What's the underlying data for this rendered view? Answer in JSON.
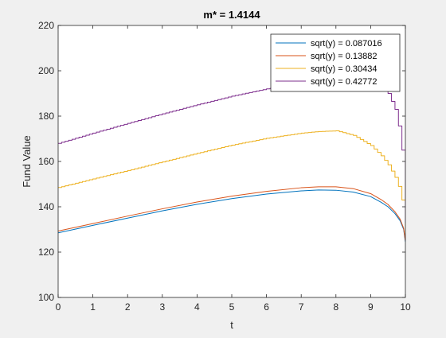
{
  "chart_data": {
    "type": "line",
    "title": "m* = 1.4144",
    "xlabel": "t",
    "ylabel": "Fund Value",
    "xlim": [
      0,
      10
    ],
    "ylim": [
      100,
      220
    ],
    "xticks": [
      0,
      1,
      2,
      3,
      4,
      5,
      6,
      7,
      8,
      9,
      10
    ],
    "yticks": [
      100,
      120,
      140,
      160,
      180,
      200,
      220
    ],
    "grid": false,
    "legend_position": "top-right",
    "series": [
      {
        "name": "sqrt(y) = 0.087016",
        "color": "#0072BD",
        "step": false,
        "x": [
          0,
          1,
          2,
          3,
          4,
          5,
          6,
          7,
          7.5,
          8,
          8.5,
          9,
          9.3,
          9.5,
          9.7,
          9.85,
          9.95,
          10
        ],
        "y": [
          128.5,
          131.8,
          135.0,
          138.2,
          141.1,
          143.6,
          145.6,
          147.0,
          147.4,
          147.3,
          146.5,
          144.5,
          142.0,
          140.0,
          137.0,
          133.8,
          130.0,
          124.5
        ]
      },
      {
        "name": "sqrt(y) = 0.13882",
        "color": "#D95319",
        "step": false,
        "x": [
          0,
          1,
          2,
          3,
          4,
          5,
          6,
          7,
          7.5,
          8,
          8.5,
          9,
          9.3,
          9.5,
          9.7,
          9.85,
          9.95,
          10
        ],
        "y": [
          129.3,
          132.6,
          135.9,
          139.1,
          142.1,
          144.7,
          146.8,
          148.4,
          148.8,
          148.8,
          148.0,
          145.8,
          143.2,
          141.0,
          137.8,
          134.5,
          130.5,
          125.0
        ]
      },
      {
        "name": "sqrt(y) = 0.30434",
        "color": "#EDB120",
        "step": true,
        "x": [
          0,
          1,
          2,
          3,
          4,
          5,
          6,
          7,
          7.5,
          8,
          8.5,
          9,
          9.3,
          9.5,
          9.7,
          9.85,
          9.95,
          10
        ],
        "y": [
          148.5,
          152.3,
          156.0,
          159.8,
          163.6,
          167.2,
          170.2,
          172.5,
          173.2,
          173.5,
          171.5,
          167.0,
          162.5,
          158.5,
          153.0,
          147.0,
          139.0,
          128.0
        ]
      },
      {
        "name": "sqrt(y) = 0.42772",
        "color": "#7E2F8E",
        "step": true,
        "x": [
          0,
          1,
          2,
          3,
          4,
          5,
          6,
          7,
          7.5,
          8,
          8.5,
          9,
          9.3,
          9.5,
          9.7,
          9.85,
          9.95,
          10
        ],
        "y": [
          168.0,
          172.5,
          176.8,
          181.0,
          185.0,
          188.8,
          192.0,
          194.2,
          195.0,
          195.5,
          196.0,
          195.0,
          193.0,
          190.0,
          183.0,
          172.0,
          158.0,
          133.0
        ]
      }
    ]
  }
}
